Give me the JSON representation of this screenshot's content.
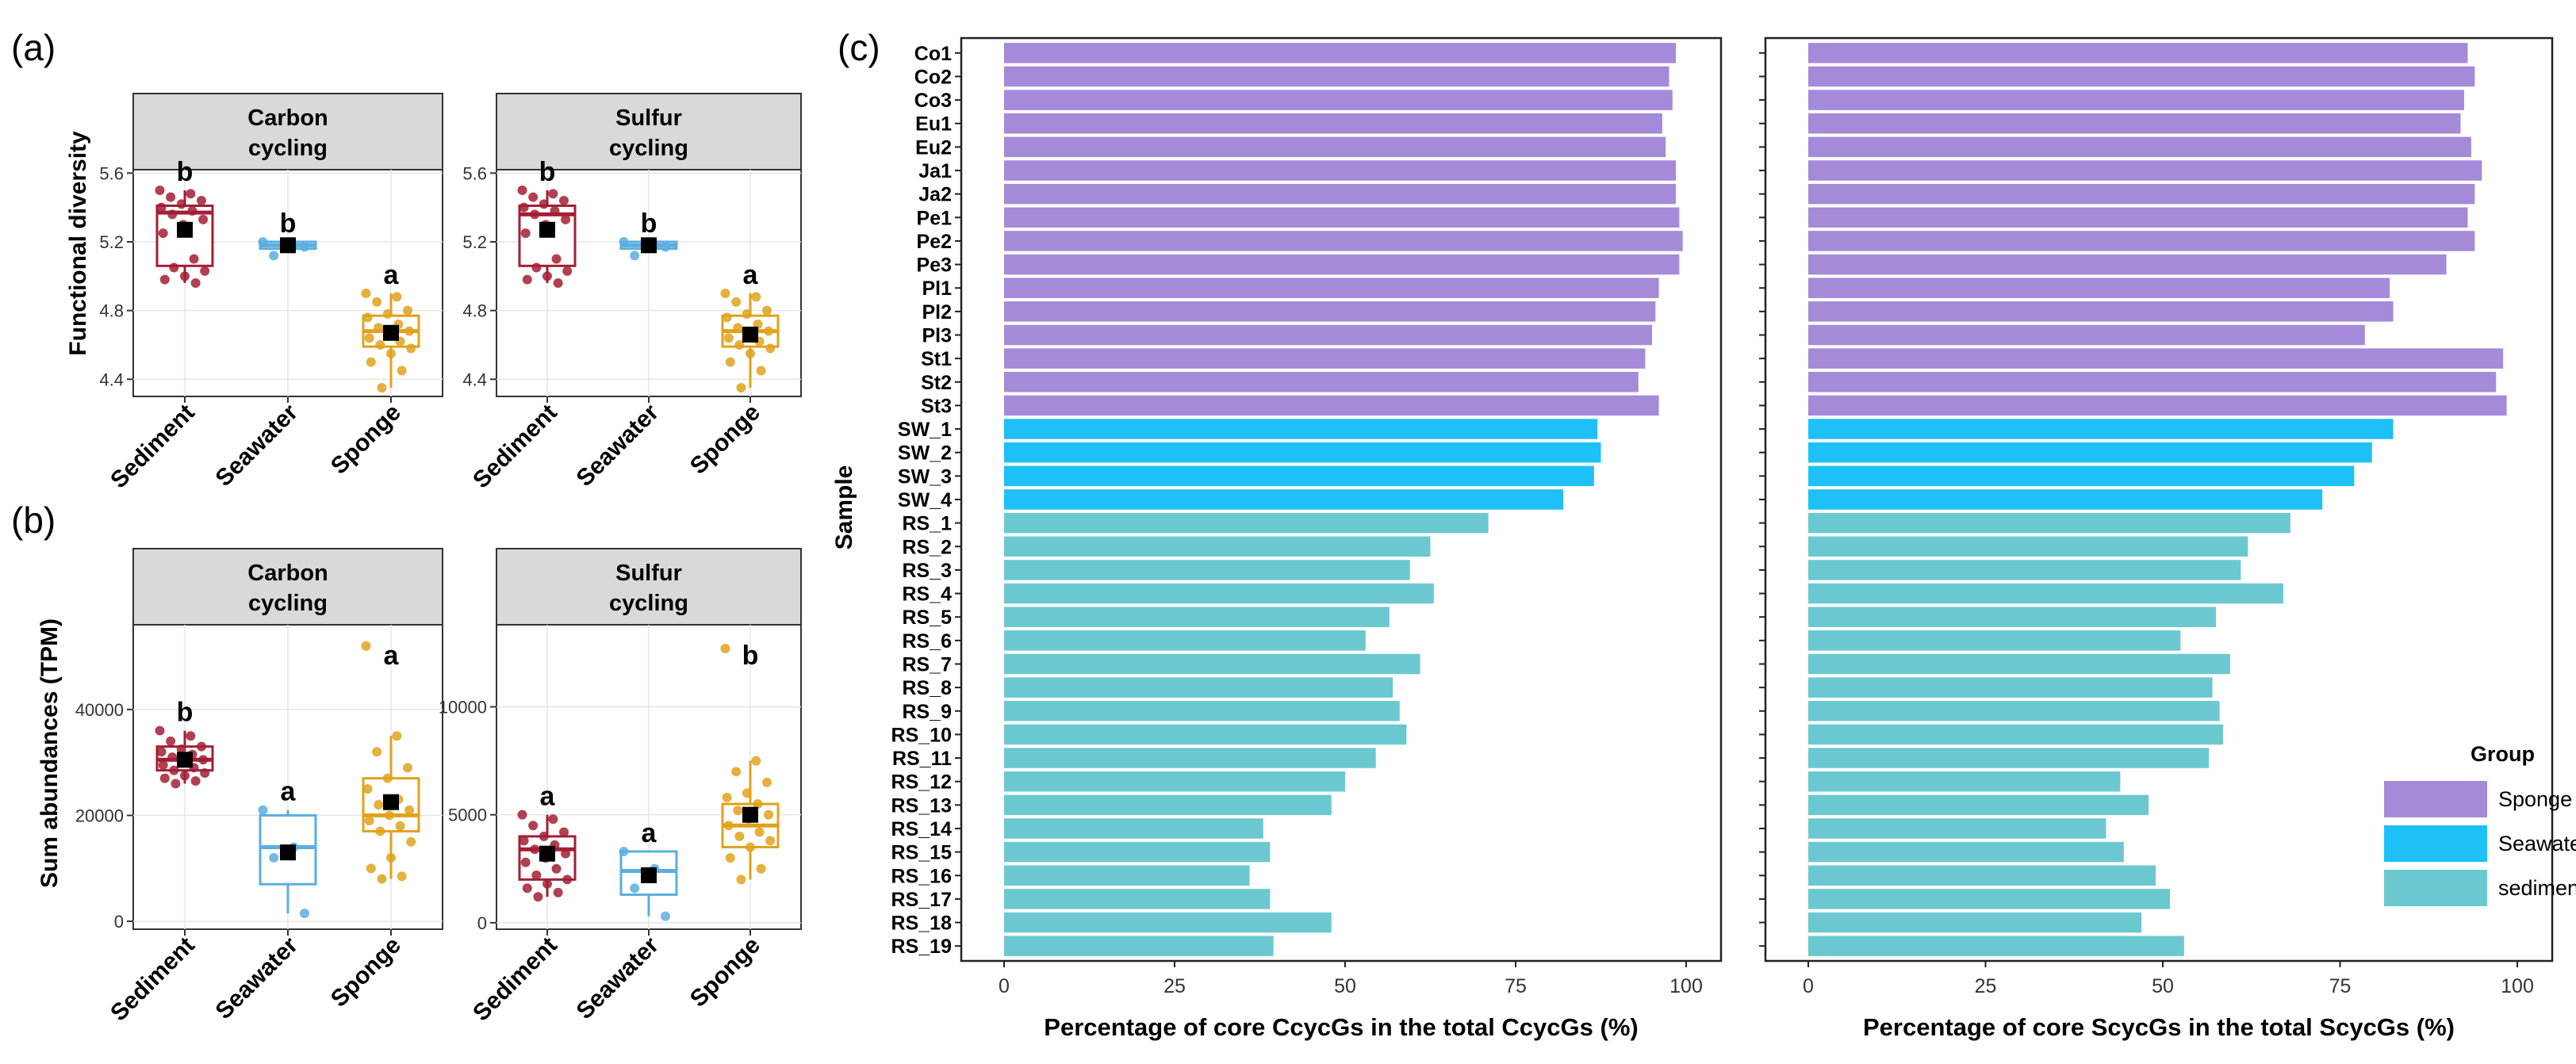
{
  "colors": {
    "sediment": "#a31f34",
    "seawater": "#5aaee0",
    "sponge": "#e0a21b",
    "bar_sponge": "#a48ad9",
    "bar_seawater": "#1ec0f8",
    "bar_sediment": "#6cc8d0",
    "strip": "#d9d9d9",
    "grid": "#e6e6e6"
  },
  "panel_labels": {
    "a": "(a)",
    "b": "(b)",
    "c": "(c)"
  },
  "chart_data": [
    {
      "type": "box",
      "id": "a-carbon",
      "panel": "(a)",
      "strip": [
        "Carbon",
        "cycling"
      ],
      "ylabel": "Functional diversity",
      "ylim": [
        4.3,
        5.62
      ],
      "yticks": [
        "4.4",
        "4.8",
        "5.2",
        "5.6"
      ],
      "categories": [
        "Sediment",
        "Seawater",
        "Sponge"
      ],
      "groups": [
        {
          "name": "Sediment",
          "q1": 5.06,
          "median": 5.37,
          "q3": 5.41,
          "low": 4.96,
          "high": 5.5,
          "mean": 5.27,
          "letter": "b",
          "points": [
            5.5,
            5.48,
            5.46,
            5.44,
            5.42,
            5.4,
            5.38,
            5.36,
            5.33,
            5.3,
            5.25,
            5.1,
            5.05,
            5.03,
            5.0,
            4.98,
            4.96
          ]
        },
        {
          "name": "Seawater",
          "q1": 5.16,
          "median": 5.18,
          "q3": 5.2,
          "low": 5.16,
          "high": 5.2,
          "mean": 5.18,
          "letter": "b",
          "points": [
            5.2,
            5.18,
            5.12,
            5.17
          ]
        },
        {
          "name": "Sponge",
          "q1": 4.59,
          "median": 4.68,
          "q3": 4.77,
          "low": 4.35,
          "high": 4.9,
          "mean": 4.67,
          "letter": "a",
          "points": [
            4.9,
            4.88,
            4.85,
            4.8,
            4.78,
            4.76,
            4.72,
            4.7,
            4.68,
            4.66,
            4.64,
            4.62,
            4.6,
            4.58,
            4.55,
            4.5,
            4.45,
            4.35
          ]
        }
      ]
    },
    {
      "type": "box",
      "id": "a-sulfur",
      "panel": "(a)",
      "strip": [
        "Sulfur",
        "cycling"
      ],
      "ylabel": "",
      "ylim": [
        4.3,
        5.62
      ],
      "yticks": [
        "4.4",
        "4.8",
        "5.2",
        "5.6"
      ],
      "categories": [
        "Sediment",
        "Seawater",
        "Sponge"
      ],
      "groups": [
        {
          "name": "Sediment",
          "q1": 5.06,
          "median": 5.36,
          "q3": 5.41,
          "low": 4.96,
          "high": 5.5,
          "mean": 5.27,
          "letter": "b",
          "points": [
            5.5,
            5.48,
            5.46,
            5.44,
            5.42,
            5.4,
            5.38,
            5.36,
            5.33,
            5.3,
            5.25,
            5.1,
            5.05,
            5.03,
            5.0,
            4.98,
            4.96
          ]
        },
        {
          "name": "Seawater",
          "q1": 5.16,
          "median": 5.18,
          "q3": 5.2,
          "low": 5.16,
          "high": 5.2,
          "mean": 5.18,
          "letter": "b",
          "points": [
            5.2,
            5.18,
            5.12,
            5.17
          ]
        },
        {
          "name": "Sponge",
          "q1": 4.59,
          "median": 4.68,
          "q3": 4.77,
          "low": 4.35,
          "high": 4.9,
          "mean": 4.66,
          "letter": "a",
          "points": [
            4.9,
            4.88,
            4.85,
            4.8,
            4.78,
            4.76,
            4.72,
            4.7,
            4.68,
            4.66,
            4.64,
            4.62,
            4.6,
            4.58,
            4.55,
            4.5,
            4.45,
            4.35
          ]
        }
      ]
    },
    {
      "type": "box",
      "id": "b-carbon",
      "panel": "(b)",
      "strip": [
        "Carbon",
        "cycling"
      ],
      "ylabel": "Sum abundances (TPM)",
      "ylim": [
        -1500,
        56000
      ],
      "yticks": [
        "0",
        "20000",
        "40000"
      ],
      "ytick_values": [
        0,
        20000,
        40000
      ],
      "categories": [
        "Sediment",
        "Seawater",
        "Sponge"
      ],
      "groups": [
        {
          "name": "Sediment",
          "q1": 28500,
          "median": 30500,
          "q3": 33000,
          "low": 26000,
          "high": 36000,
          "mean": 30500,
          "letter": "b",
          "points": [
            36000,
            35000,
            34000,
            33000,
            32500,
            32000,
            31500,
            31000,
            30500,
            30000,
            29500,
            29000,
            28500,
            28000,
            27500,
            27000,
            26500,
            26000
          ]
        },
        {
          "name": "Seawater",
          "q1": 7000,
          "median": 14000,
          "q3": 20000,
          "low": 1500,
          "high": 21000,
          "mean": 13000,
          "letter": "a",
          "points": [
            21000,
            14000,
            12000,
            1500
          ]
        },
        {
          "name": "Sponge",
          "q1": 17000,
          "median": 20000,
          "q3": 27000,
          "low": 8000,
          "high": 35000,
          "mean": 22500,
          "letter": "a",
          "points": [
            52000,
            35000,
            32000,
            29000,
            27000,
            25000,
            23000,
            22000,
            21000,
            20000,
            19000,
            18000,
            17000,
            15000,
            12000,
            10000,
            8500,
            8000
          ]
        }
      ]
    },
    {
      "type": "box",
      "id": "b-sulfur",
      "panel": "(b)",
      "strip": [
        "Sulfur",
        "cycling"
      ],
      "ylabel": "",
      "ylim": [
        -300,
        13800
      ],
      "yticks": [
        "0",
        "5000",
        "10000"
      ],
      "ytick_values": [
        0,
        5000,
        10000
      ],
      "categories": [
        "Sediment",
        "Seawater",
        "Sponge"
      ],
      "groups": [
        {
          "name": "Sediment",
          "q1": 2000,
          "median": 3400,
          "q3": 4000,
          "low": 1200,
          "high": 5000,
          "mean": 3200,
          "letter": "a",
          "points": [
            5000,
            4800,
            4500,
            4200,
            4000,
            3800,
            3600,
            3400,
            3200,
            3000,
            2800,
            2500,
            2200,
            2000,
            1800,
            1600,
            1400,
            1200
          ]
        },
        {
          "name": "Seawater",
          "q1": 1300,
          "median": 2400,
          "q3": 3300,
          "low": 300,
          "high": 3300,
          "mean": 2200,
          "letter": "a",
          "points": [
            3300,
            2500,
            1600,
            300
          ]
        },
        {
          "name": "Sponge",
          "q1": 3500,
          "median": 4500,
          "q3": 5500,
          "low": 2000,
          "high": 7500,
          "mean": 5000,
          "letter": "b",
          "points": [
            12700,
            7500,
            7000,
            6500,
            6000,
            5800,
            5500,
            5200,
            5000,
            4800,
            4500,
            4200,
            4000,
            3800,
            3500,
            3000,
            2500,
            2000
          ]
        }
      ]
    },
    {
      "type": "bar",
      "orientation": "horizontal",
      "id": "c-carbon",
      "panel": "(c)",
      "ylabel": "Sample",
      "xlabel": "Percentage of core CcycGs in the total CcycGs (%)",
      "xlim": [
        0,
        100
      ],
      "xticks": [
        "0",
        "25",
        "50",
        "75",
        "100"
      ],
      "categories": [
        "Co1",
        "Co2",
        "Co3",
        "Eu1",
        "Eu2",
        "Ja1",
        "Ja2",
        "Pe1",
        "Pe2",
        "Pe3",
        "Pl1",
        "Pl2",
        "Pl3",
        "St1",
        "St2",
        "St3",
        "SW_1",
        "SW_2",
        "SW_3",
        "SW_4",
        "RS_1",
        "RS_2",
        "RS_3",
        "RS_4",
        "RS_5",
        "RS_6",
        "RS_7",
        "RS_8",
        "RS_9",
        "RS_10",
        "RS_11",
        "RS_12",
        "RS_13",
        "RS_14",
        "RS_15",
        "RS_16",
        "RS_17",
        "RS_18",
        "RS_19"
      ],
      "groups": [
        "Sponge",
        "Sponge",
        "Sponge",
        "Sponge",
        "Sponge",
        "Sponge",
        "Sponge",
        "Sponge",
        "Sponge",
        "Sponge",
        "Sponge",
        "Sponge",
        "Sponge",
        "Sponge",
        "Sponge",
        "Sponge",
        "Seawater",
        "Seawater",
        "Seawater",
        "Seawater",
        "sediment",
        "sediment",
        "sediment",
        "sediment",
        "sediment",
        "sediment",
        "sediment",
        "sediment",
        "sediment",
        "sediment",
        "sediment",
        "sediment",
        "sediment",
        "sediment",
        "sediment",
        "sediment",
        "sediment",
        "sediment",
        "sediment"
      ],
      "values": [
        98.5,
        97.5,
        98,
        96.5,
        97,
        98.5,
        98.5,
        99,
        99.5,
        99,
        96,
        95.5,
        95,
        94,
        93,
        96,
        87,
        87.5,
        86.5,
        82,
        71,
        62.5,
        59.5,
        63,
        56.5,
        53,
        61,
        57,
        58,
        59,
        54.5,
        50,
        48,
        38,
        39,
        36,
        39,
        48,
        39.5
      ]
    },
    {
      "type": "bar",
      "orientation": "horizontal",
      "id": "c-sulfur",
      "panel": "(c)",
      "xlabel": "Percentage of core ScycGs in the total ScycGs (%)",
      "xlim": [
        0,
        100
      ],
      "xticks": [
        "0",
        "25",
        "50",
        "75",
        "100"
      ],
      "categories": [
        "Co1",
        "Co2",
        "Co3",
        "Eu1",
        "Eu2",
        "Ja1",
        "Ja2",
        "Pe1",
        "Pe2",
        "Pe3",
        "Pl1",
        "Pl2",
        "Pl3",
        "St1",
        "St2",
        "St3",
        "SW_1",
        "SW_2",
        "SW_3",
        "SW_4",
        "RS_1",
        "RS_2",
        "RS_3",
        "RS_4",
        "RS_5",
        "RS_6",
        "RS_7",
        "RS_8",
        "RS_9",
        "RS_10",
        "RS_11",
        "RS_12",
        "RS_13",
        "RS_14",
        "RS_15",
        "RS_16",
        "RS_17",
        "RS_18",
        "RS_19"
      ],
      "groups": [
        "Sponge",
        "Sponge",
        "Sponge",
        "Sponge",
        "Sponge",
        "Sponge",
        "Sponge",
        "Sponge",
        "Sponge",
        "Sponge",
        "Sponge",
        "Sponge",
        "Sponge",
        "Sponge",
        "Sponge",
        "Sponge",
        "Seawater",
        "Seawater",
        "Seawater",
        "Seawater",
        "sediment",
        "sediment",
        "sediment",
        "sediment",
        "sediment",
        "sediment",
        "sediment",
        "sediment",
        "sediment",
        "sediment",
        "sediment",
        "sediment",
        "sediment",
        "sediment",
        "sediment",
        "sediment",
        "sediment",
        "sediment",
        "sediment"
      ],
      "values": [
        93,
        94,
        92.5,
        92,
        93.5,
        95,
        94,
        93,
        94,
        90,
        82,
        82.5,
        78.5,
        98,
        97,
        98.5,
        82.5,
        79.5,
        77,
        72.5,
        68,
        62,
        61,
        67,
        57.5,
        52.5,
        59.5,
        57,
        58,
        58.5,
        56.5,
        44,
        48,
        42,
        44.5,
        49,
        51,
        47,
        53
      ]
    }
  ],
  "legend": {
    "title": "Group",
    "items": [
      {
        "label": "Sponge",
        "color": "#a48ad9"
      },
      {
        "label": "Seawater",
        "color": "#1ec0f8"
      },
      {
        "label": "sediment",
        "color": "#6cc8d0"
      }
    ]
  }
}
